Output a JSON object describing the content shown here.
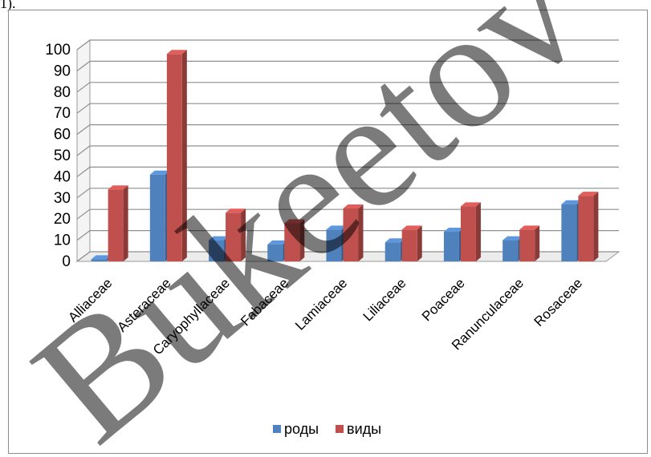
{
  "page": {
    "top_fragment": "1)."
  },
  "watermark": {
    "text": "Bukeetov Uni",
    "color": "#000000"
  },
  "chart_data": {
    "type": "bar",
    "style": "3d-clustered",
    "title": "",
    "xlabel": "",
    "ylabel": "",
    "categories": [
      "Alliaceae",
      "Asteraceae",
      "Caryophyllaceae",
      "Fabaceae",
      "Lamiaceae",
      "Liliaceae",
      "Poaceae",
      "Ranunculaceae",
      "Rosaceae"
    ],
    "series": [
      {
        "name": "роды",
        "color": "#4f81bd",
        "values": [
          1,
          41,
          10,
          8,
          15,
          9,
          14,
          10,
          27
        ]
      },
      {
        "name": "виды",
        "color": "#c0504d",
        "values": [
          34,
          98,
          23,
          18,
          25,
          15,
          26,
          15,
          31
        ]
      }
    ],
    "ylim": [
      0,
      100
    ],
    "yticks": [
      0,
      10,
      20,
      30,
      40,
      50,
      60,
      70,
      80,
      90,
      100
    ],
    "grid": true,
    "legend_position": "bottom"
  }
}
